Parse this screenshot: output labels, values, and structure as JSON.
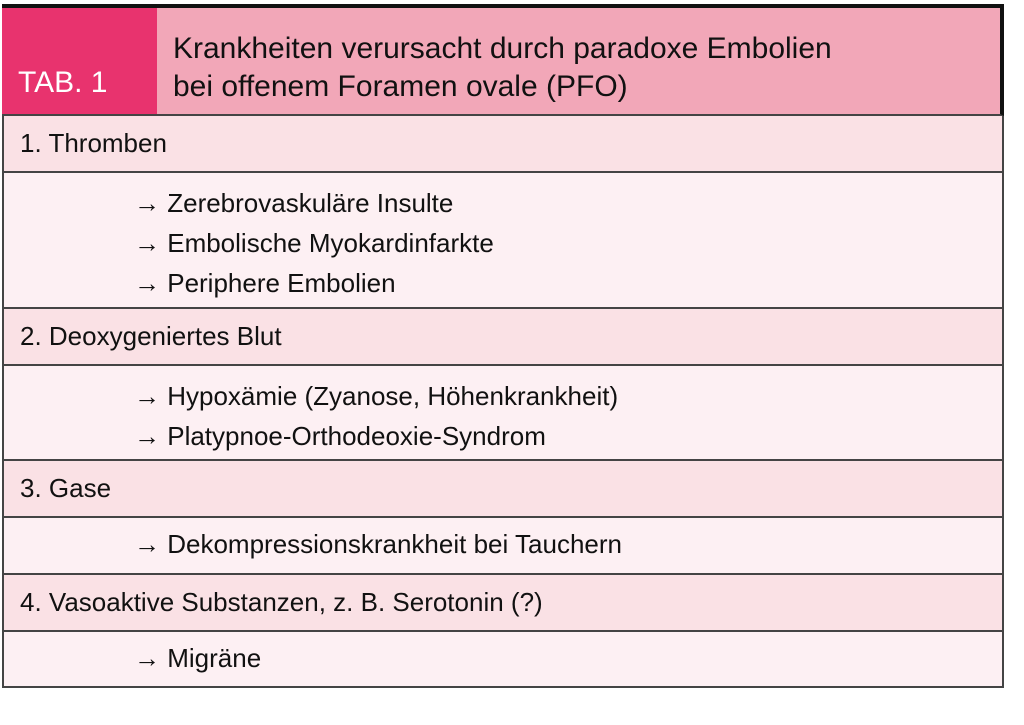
{
  "table": {
    "label": "TAB. 1",
    "title_line1": "Krankheiten verursacht durch paradoxe Embolien",
    "title_line2": "bei offenem Foramen ovale (PFO)",
    "sections": [
      {
        "heading": "1. Thromben",
        "items": [
          "→ Zerebrovaskuläre Insulte",
          "→ Embolische Myokardinfarkte",
          "→ Periphere Embolien"
        ]
      },
      {
        "heading": "2. Deoxygeniertes Blut",
        "items": [
          "→ Hypoxämie (Zyanose, Höhenkrankheit)",
          "→ Platypnoe-Orthodeoxie-Syndrom"
        ]
      },
      {
        "heading": "3. Gase",
        "items": [
          "→ Dekompressionskrankheit bei Tauchern"
        ]
      },
      {
        "heading": "4. Vasoaktive Substanzen, z. B. Serotonin (?)",
        "items": [
          "→ Migräne"
        ]
      }
    ]
  },
  "colors": {
    "label_bg": "#e8336e",
    "title_bg": "#f2a7b8",
    "heading_bg": "#fae1e5",
    "item_bg": "#fdf0f3"
  }
}
